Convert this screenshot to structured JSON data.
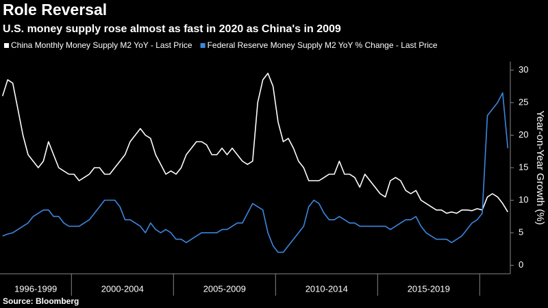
{
  "chart_data": {
    "type": "line",
    "title": "Role Reversal",
    "subtitle": "U.S. money supply rose almost as fast in 2020 as China's in 2009",
    "source": "Source: Bloomberg",
    "y_axis_label": "Year-on-Year Growth (%)",
    "categories": [
      "1996-1999",
      "2000-2004",
      "2005-2009",
      "2010-2014",
      "2015-2019",
      null
    ],
    "ylim": [
      -1.3,
      31.3
    ],
    "yticks": [
      0,
      5,
      10,
      15,
      20,
      25,
      30
    ],
    "background": "#000000",
    "series": [
      {
        "name": "China Monthly Money Supply M2 YoY - Last Price",
        "color": "#ffffff",
        "values": [
          [
            26,
            28.5,
            28,
            24,
            20,
            17,
            16,
            15,
            16,
            19,
            17,
            15,
            14.5,
            14
          ],
          [
            14,
            13,
            13.5,
            14,
            15,
            15,
            14,
            14,
            15,
            16,
            17,
            19,
            20,
            21,
            20,
            19.5,
            17,
            15.5,
            14,
            14.5
          ],
          [
            14,
            15,
            17,
            18,
            19,
            19,
            18.5,
            17,
            17,
            18,
            17,
            18,
            17,
            16,
            15.5,
            16,
            25,
            28.5,
            29.5,
            27.5
          ],
          [
            22,
            19,
            19.5,
            18,
            16,
            15,
            13,
            13,
            13,
            13.5,
            14,
            14,
            16,
            14,
            14,
            13.5,
            12,
            14,
            13,
            12
          ],
          [
            11,
            10.5,
            13,
            13.5,
            13,
            11.5,
            11,
            11.5,
            10,
            9.5,
            9,
            8.5,
            8.5,
            8,
            8.2,
            8,
            8.5,
            8.5,
            8.4,
            8.7
          ],
          [
            8.5,
            10.5,
            11,
            10.5,
            9.5,
            8.2
          ]
        ]
      },
      {
        "name": "Federal Reserve Money Supply M2 YoY % Change - Last Price",
        "color": "#3b87e0",
        "values": [
          [
            4.5,
            4.8,
            5,
            5.5,
            6,
            6.5,
            7.5,
            8,
            8.5,
            8.5,
            7.5,
            7.5,
            6.5,
            6
          ],
          [
            6,
            6,
            6.5,
            7,
            8,
            9,
            10,
            10,
            10,
            9,
            7,
            7,
            6.5,
            6,
            5,
            6.5,
            5.5,
            5,
            5.5,
            5
          ],
          [
            4,
            4,
            3.5,
            4,
            4.5,
            5,
            5,
            5,
            5,
            5.5,
            5.5,
            6,
            6.5,
            6.5,
            8,
            9.5,
            9,
            8.5,
            5,
            3
          ],
          [
            2,
            2,
            3,
            4,
            5,
            6,
            9,
            10,
            9.5,
            8,
            7,
            7,
            7.5,
            7,
            6.5,
            6.5,
            6,
            6,
            6,
            6
          ],
          [
            6,
            6,
            5.5,
            6,
            6.5,
            7,
            7,
            7.5,
            6,
            5,
            4.5,
            4,
            4,
            4,
            3.5,
            4,
            4.5,
            5.5,
            6.5,
            7
          ],
          [
            8,
            23,
            24,
            25,
            26.5,
            18
          ]
        ]
      }
    ]
  }
}
